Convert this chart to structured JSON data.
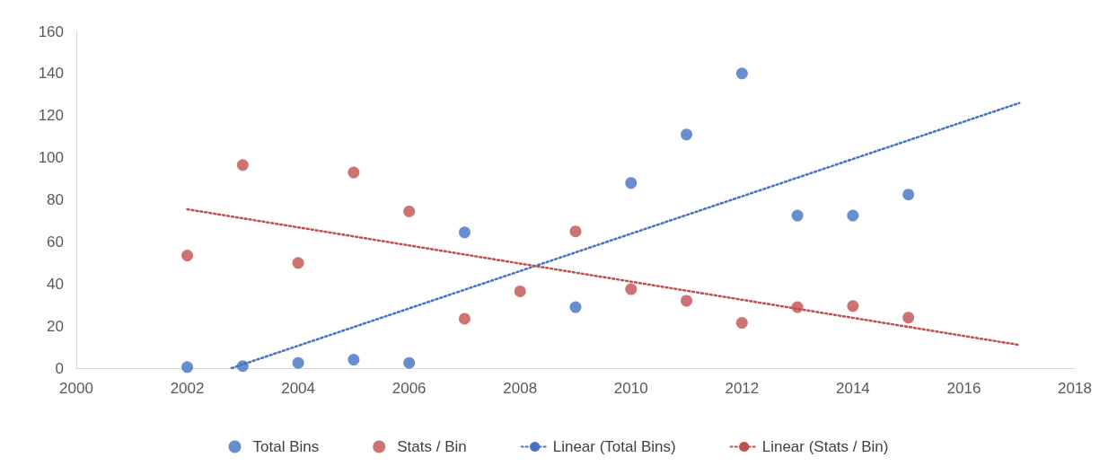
{
  "chart_data": {
    "type": "scatter",
    "marker": "circle",
    "grid": false,
    "legend": "bottom",
    "xlim": [
      2000,
      2018
    ],
    "xticks": [
      2000,
      2002,
      2004,
      2006,
      2008,
      2010,
      2012,
      2014,
      2016,
      2018
    ],
    "ylim": [
      0,
      160
    ],
    "yticks": [
      0,
      20,
      40,
      60,
      80,
      100,
      120,
      140,
      160
    ],
    "series": [
      {
        "name": "Total Bins",
        "color": "#4472c4",
        "x": [
          2002,
          2003,
          2004,
          2005,
          2006,
          2007,
          2009,
          2010,
          2011,
          2012,
          2013,
          2014,
          2015
        ],
        "values": [
          0.5,
          1,
          2.5,
          4,
          2.5,
          64.5,
          29,
          88,
          111,
          140,
          72.5,
          72.5,
          82.5
        ]
      },
      {
        "name": "Stats / Bin",
        "color": "#c0504d",
        "x": [
          2002,
          2003,
          2004,
          2005,
          2006,
          2007,
          2008,
          2009,
          2010,
          2011,
          2012,
          2013,
          2014,
          2015
        ],
        "values": [
          53.5,
          96.5,
          50,
          93,
          74.5,
          23.5,
          36.5,
          65,
          37.5,
          32,
          21.5,
          29,
          29.5,
          24
        ]
      },
      {
        "name": "Linear (Total Bins)",
        "type": "line",
        "line_style": "dotted",
        "marker": "none",
        "color": "#4472c4",
        "x": [
          2002.8,
          2017
        ],
        "values": [
          0,
          126
        ]
      },
      {
        "name": "Linear (Stats / Bin)",
        "type": "line",
        "line_style": "dotted",
        "marker": "none",
        "color": "#c0504d",
        "x": [
          2002,
          2017
        ],
        "values": [
          75.5,
          11
        ]
      }
    ]
  }
}
